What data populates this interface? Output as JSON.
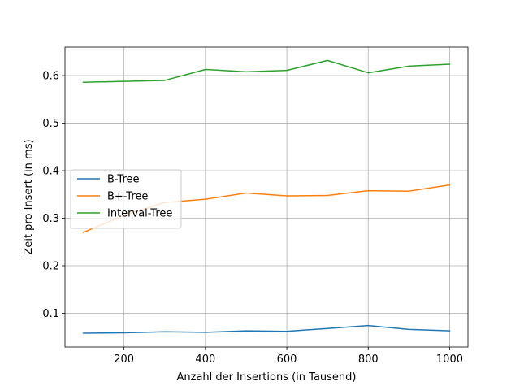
{
  "chart_data": {
    "type": "line",
    "title": "",
    "xlabel": "Anzahl der Insertions (in Tausend)",
    "ylabel": "Zeit pro Insert (in ms)",
    "x": [
      100,
      200,
      300,
      400,
      500,
      600,
      700,
      800,
      900,
      1000
    ],
    "xlim": [
      55,
      1045
    ],
    "ylim": [
      0.029,
      0.66
    ],
    "xticks": [
      200,
      400,
      600,
      800,
      1000
    ],
    "xtick_labels": [
      "200",
      "400",
      "600",
      "800",
      "1000"
    ],
    "yticks": [
      0.1,
      0.2,
      0.3,
      0.4,
      0.5,
      0.6
    ],
    "ytick_labels": [
      "0.1",
      "0.2",
      "0.3",
      "0.4",
      "0.5",
      "0.6"
    ],
    "grid": true,
    "legend_position": "center-left",
    "series": [
      {
        "name": "B-Tree",
        "color": "#1f77b4",
        "values": [
          0.058,
          0.059,
          0.061,
          0.06,
          0.063,
          0.062,
          0.068,
          0.074,
          0.066,
          0.063
        ]
      },
      {
        "name": "B+-Tree",
        "color": "#ff7f0e",
        "values": [
          0.27,
          0.306,
          0.333,
          0.34,
          0.353,
          0.347,
          0.348,
          0.358,
          0.357,
          0.37
        ]
      },
      {
        "name": "Interval-Tree",
        "color": "#2ca02c",
        "values": [
          0.586,
          0.588,
          0.59,
          0.613,
          0.608,
          0.611,
          0.632,
          0.606,
          0.62,
          0.624
        ]
      }
    ]
  }
}
